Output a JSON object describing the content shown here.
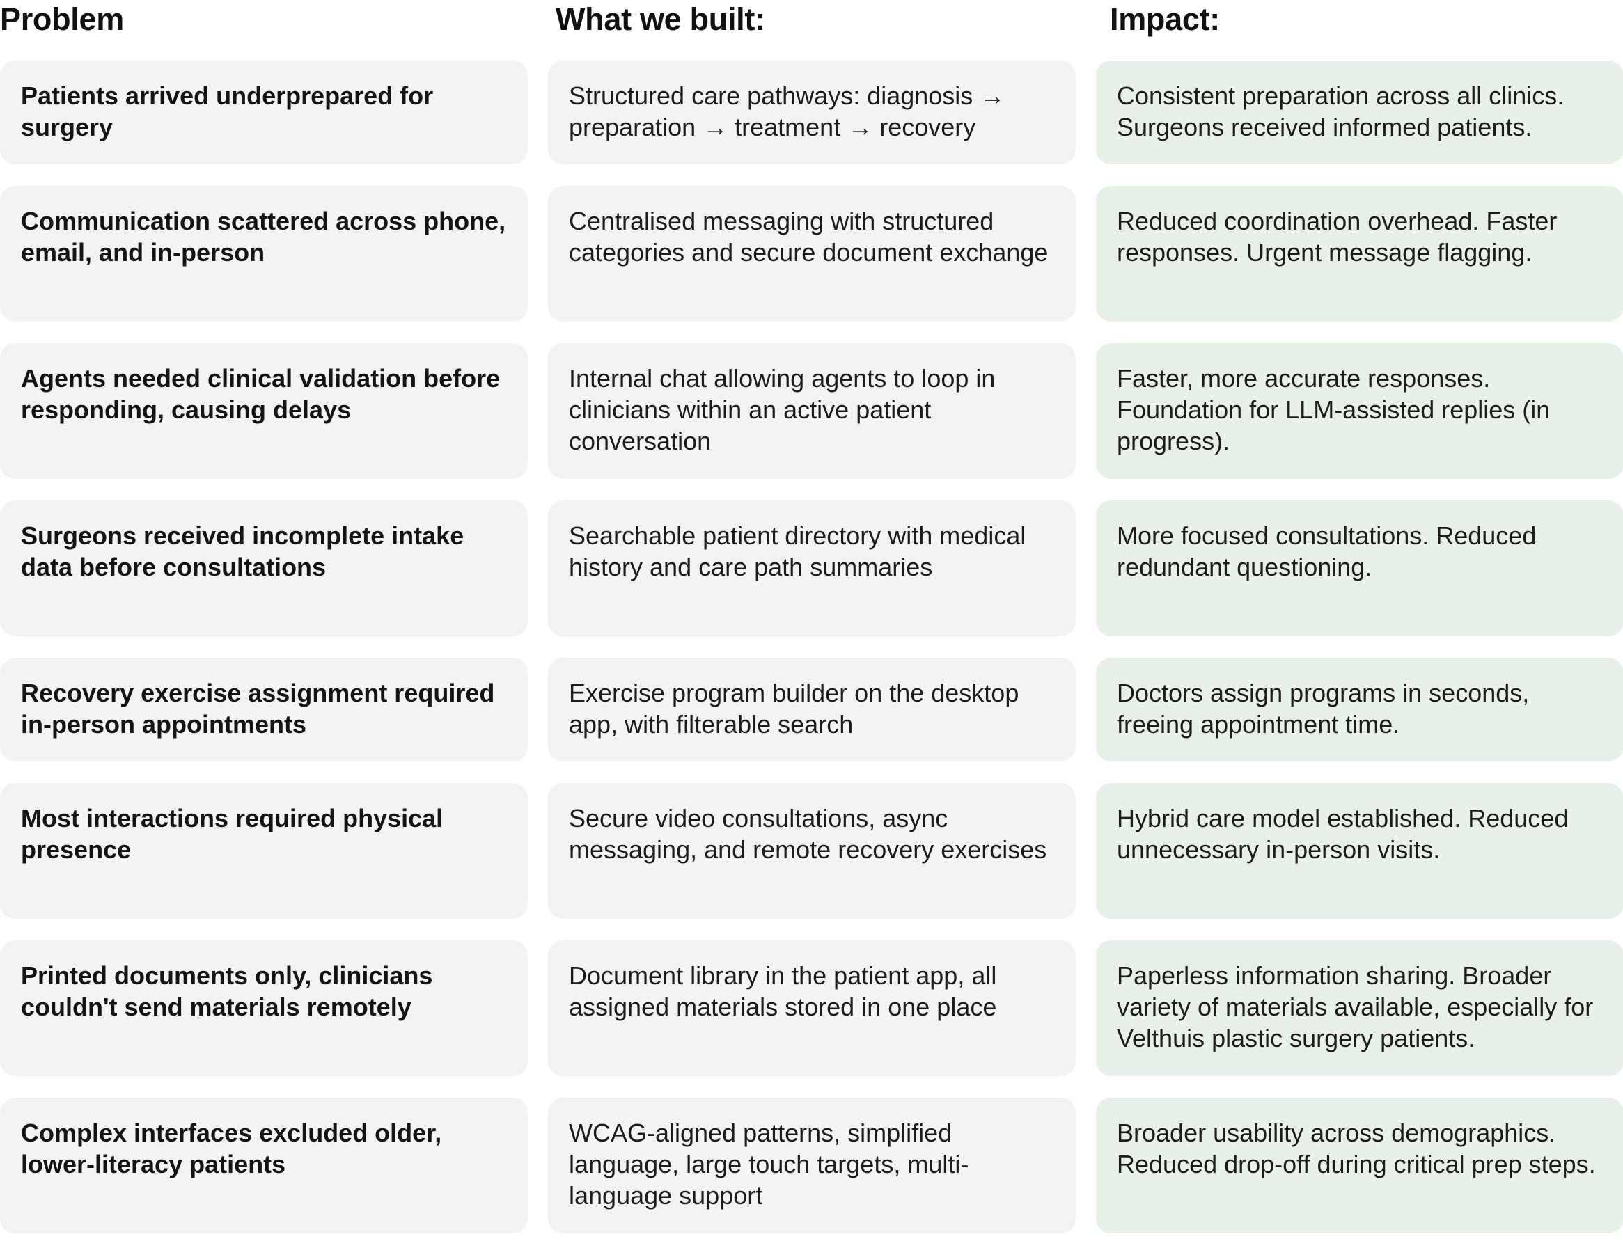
{
  "headers": {
    "problem": "Problem",
    "built": "What we built:",
    "impact": "Impact:"
  },
  "colors": {
    "neutral_card": "#f3f3f3",
    "impact_card": "#e8f1e8",
    "text": "#141414"
  },
  "rows": [
    {
      "problem": "Patients arrived underprepared for surgery",
      "built": "Structured care pathways: diagnosis → preparation → treatment → recovery",
      "impact": "Consistent preparation across all clinics. Surgeons received informed patients."
    },
    {
      "problem": "Communication scattered across phone, email, and in-person",
      "built": "Centralised messaging with structured categories and secure document exchange",
      "impact": "Reduced coordination overhead. Faster responses. Urgent message flagging."
    },
    {
      "problem": "Agents needed clinical validation before responding, causing delays",
      "built": "Internal chat allowing agents to loop in clinicians within an active patient conversation",
      "impact": "Faster, more accurate responses. Foundation for LLM-assisted replies (in progress)."
    },
    {
      "problem": "Surgeons received incomplete intake data before consultations",
      "built": "Searchable patient directory with medical history and care path summaries",
      "impact": "More focused consultations. Reduced redundant questioning."
    },
    {
      "problem": "Recovery exercise assignment required in-person appointments",
      "built": "Exercise program builder on the desktop app, with filterable search",
      "impact": "Doctors assign programs in seconds, freeing appointment time."
    },
    {
      "problem": "Most interactions required physical presence",
      "built": "Secure video consultations, async messaging, and remote recovery exercises",
      "impact": "Hybrid care model established. Reduced unnecessary in-person visits."
    },
    {
      "problem": "Printed documents only, clinicians couldn't send materials remotely",
      "built": "Document library in the patient app, all assigned materials stored in one place",
      "impact": "Paperless information sharing. Broader variety of materials available, especially for Velthuis plastic surgery patients."
    },
    {
      "problem": "Complex interfaces excluded older, lower-literacy patients",
      "built": "WCAG-aligned patterns, simplified language, large touch targets, multi-language support",
      "impact": "Broader usability across demographics. Reduced drop-off during critical prep steps."
    }
  ]
}
